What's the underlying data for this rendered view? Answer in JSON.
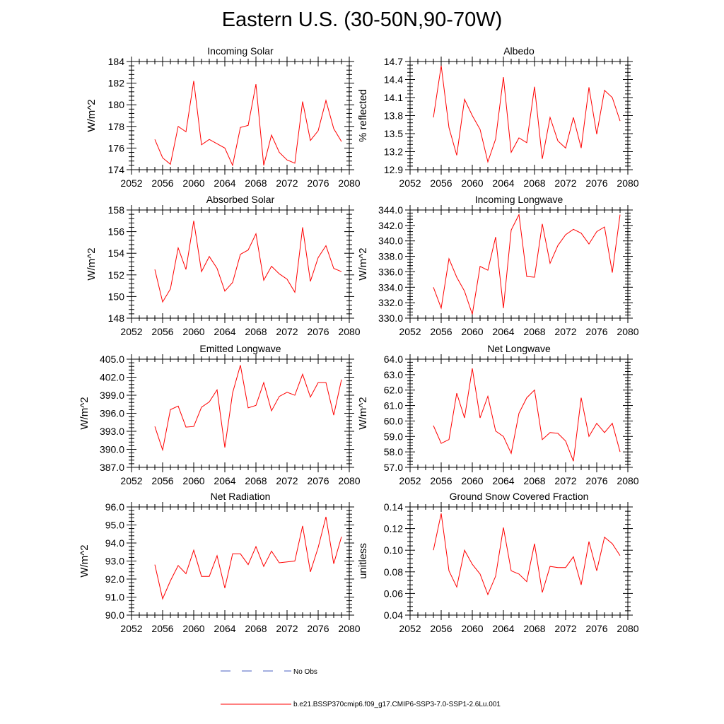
{
  "title": "Eastern U.S. (30-50N,90-70W)",
  "legend": {
    "entries": [
      {
        "label": "No Obs",
        "color": "#4a5fc1",
        "style": "dashed"
      },
      {
        "label": "b.e21.BSSP370cmip6.f09_g17.CMIP6-SSP3-7.0-SSP1-2.6Lu.001",
        "color": "#ff0000",
        "style": "solid"
      }
    ]
  },
  "colors": {
    "series": "#ff0000",
    "axis": "#000000"
  },
  "chart_data": [
    {
      "type": "line",
      "title": "Incoming Solar",
      "ylabel": "W/m^2",
      "xlim": [
        2052,
        2080
      ],
      "ylim": [
        174,
        184
      ],
      "xticks": [
        "2052",
        "2056",
        "2060",
        "2064",
        "2068",
        "2072",
        "2076",
        "2080"
      ],
      "yticks": [
        "174",
        "176",
        "178",
        "180",
        "182",
        "184"
      ],
      "series": [
        {
          "x": [
            2055,
            2056,
            2057,
            2058,
            2059,
            2060,
            2061,
            2062,
            2063,
            2064,
            2065,
            2066,
            2067,
            2068,
            2069,
            2070,
            2071,
            2072,
            2073,
            2074,
            2075,
            2076,
            2077,
            2078,
            2079
          ],
          "values": [
            176.8,
            175.1,
            174.5,
            178.0,
            177.5,
            182.2,
            176.3,
            176.8,
            176.4,
            176.0,
            174.4,
            177.9,
            178.1,
            181.9,
            174.4,
            177.2,
            175.6,
            174.9,
            174.6,
            180.3,
            176.7,
            177.6,
            180.4,
            177.8,
            176.6
          ]
        }
      ]
    },
    {
      "type": "line",
      "title": "Albedo",
      "ylabel": "% reflected",
      "xlim": [
        2052,
        2080
      ],
      "ylim": [
        12.9,
        14.7
      ],
      "xticks": [
        "2052",
        "2056",
        "2060",
        "2064",
        "2068",
        "2072",
        "2076",
        "2080"
      ],
      "yticks": [
        "12.9",
        "13.2",
        "13.5",
        "13.8",
        "14.1",
        "14.4",
        "14.7"
      ],
      "series": [
        {
          "x": [
            2055,
            2056,
            2057,
            2058,
            2059,
            2060,
            2061,
            2062,
            2063,
            2064,
            2065,
            2066,
            2067,
            2068,
            2069,
            2070,
            2071,
            2072,
            2073,
            2074,
            2075,
            2076,
            2077,
            2078,
            2079
          ],
          "values": [
            13.77,
            14.63,
            13.6,
            13.14,
            14.07,
            13.8,
            13.57,
            13.03,
            13.41,
            14.44,
            13.19,
            13.43,
            13.35,
            14.28,
            13.08,
            13.77,
            13.38,
            13.26,
            13.77,
            13.26,
            14.27,
            13.49,
            14.22,
            14.1,
            13.71
          ]
        }
      ]
    },
    {
      "type": "line",
      "title": "Absorbed Solar",
      "ylabel": "W/m^2",
      "xlim": [
        2052,
        2080
      ],
      "ylim": [
        148,
        158
      ],
      "xticks": [
        "2052",
        "2056",
        "2060",
        "2064",
        "2068",
        "2072",
        "2076",
        "2080"
      ],
      "yticks": [
        "148",
        "150",
        "152",
        "154",
        "156",
        "158"
      ],
      "series": [
        {
          "x": [
            2055,
            2056,
            2057,
            2058,
            2059,
            2060,
            2061,
            2062,
            2063,
            2064,
            2065,
            2066,
            2067,
            2068,
            2069,
            2070,
            2071,
            2072,
            2073,
            2074,
            2075,
            2076,
            2077,
            2078,
            2079
          ],
          "values": [
            152.5,
            149.5,
            150.7,
            154.5,
            152.5,
            157.0,
            152.3,
            153.7,
            152.6,
            150.5,
            151.3,
            153.9,
            154.3,
            155.8,
            151.5,
            152.8,
            152.1,
            151.6,
            150.4,
            156.4,
            151.4,
            153.6,
            154.7,
            152.6,
            152.3
          ]
        }
      ]
    },
    {
      "type": "line",
      "title": "Incoming Longwave",
      "ylabel": "W/m^2",
      "xlim": [
        2052,
        2080
      ],
      "ylim": [
        330.0,
        344.0
      ],
      "xticks": [
        "2052",
        "2056",
        "2060",
        "2064",
        "2068",
        "2072",
        "2076",
        "2080"
      ],
      "yticks": [
        "330.0",
        "332.0",
        "334.0",
        "336.0",
        "338.0",
        "340.0",
        "342.0",
        "344.0"
      ],
      "series": [
        {
          "x": [
            2055,
            2056,
            2057,
            2058,
            2059,
            2060,
            2061,
            2062,
            2063,
            2064,
            2065,
            2066,
            2067,
            2068,
            2069,
            2070,
            2071,
            2072,
            2073,
            2074,
            2075,
            2076,
            2077,
            2078,
            2079
          ],
          "values": [
            334.0,
            331.3,
            337.7,
            335.3,
            333.5,
            330.5,
            336.7,
            336.2,
            340.5,
            331.3,
            341.4,
            343.4,
            335.4,
            335.3,
            342.2,
            337.1,
            339.4,
            340.8,
            341.5,
            341.0,
            339.6,
            341.2,
            341.8,
            335.9,
            343.4
          ]
        }
      ]
    },
    {
      "type": "line",
      "title": "Emitted Longwave",
      "ylabel": "W/m^2",
      "xlim": [
        2052,
        2080
      ],
      "ylim": [
        387.0,
        405.0
      ],
      "xticks": [
        "2052",
        "2056",
        "2060",
        "2064",
        "2068",
        "2072",
        "2076",
        "2080"
      ],
      "yticks": [
        "387.0",
        "390.0",
        "393.0",
        "396.0",
        "399.0",
        "402.0",
        "405.0"
      ],
      "series": [
        {
          "x": [
            2055,
            2056,
            2057,
            2058,
            2059,
            2060,
            2061,
            2062,
            2063,
            2064,
            2065,
            2066,
            2067,
            2068,
            2069,
            2070,
            2071,
            2072,
            2073,
            2074,
            2075,
            2076,
            2077,
            2078,
            2079
          ],
          "values": [
            393.8,
            389.9,
            396.6,
            397.2,
            393.7,
            393.8,
            397.0,
            397.9,
            399.9,
            390.3,
            399.4,
            404.0,
            396.9,
            397.3,
            401.1,
            396.4,
            398.8,
            399.5,
            399.0,
            402.5,
            398.7,
            401.1,
            401.1,
            395.7,
            401.6
          ]
        }
      ]
    },
    {
      "type": "line",
      "title": "Net Longwave",
      "ylabel": "W/m^2",
      "xlim": [
        2052,
        2080
      ],
      "ylim": [
        57.0,
        64.0
      ],
      "xticks": [
        "2052",
        "2056",
        "2060",
        "2064",
        "2068",
        "2072",
        "2076",
        "2080"
      ],
      "yticks": [
        "57.0",
        "58.0",
        "59.0",
        "60.0",
        "61.0",
        "62.0",
        "63.0",
        "64.0"
      ],
      "series": [
        {
          "x": [
            2055,
            2056,
            2057,
            2058,
            2059,
            2060,
            2061,
            2062,
            2063,
            2064,
            2065,
            2066,
            2067,
            2068,
            2069,
            2070,
            2071,
            2072,
            2073,
            2074,
            2075,
            2076,
            2077,
            2078,
            2079
          ],
          "values": [
            59.7,
            58.55,
            58.8,
            61.8,
            60.2,
            63.4,
            60.2,
            61.6,
            59.35,
            59.0,
            57.9,
            60.5,
            61.5,
            62.0,
            58.8,
            59.25,
            59.2,
            58.7,
            57.4,
            61.5,
            59.0,
            59.85,
            59.25,
            59.85,
            58.0
          ]
        }
      ]
    },
    {
      "type": "line",
      "title": "Net Radiation",
      "ylabel": "W/m^2",
      "xlim": [
        2052,
        2080
      ],
      "ylim": [
        90.0,
        96.0
      ],
      "xticks": [
        "2052",
        "2056",
        "2060",
        "2064",
        "2068",
        "2072",
        "2076",
        "2080"
      ],
      "yticks": [
        "90.0",
        "91.0",
        "92.0",
        "93.0",
        "94.0",
        "95.0",
        "96.0"
      ],
      "series": [
        {
          "x": [
            2055,
            2056,
            2057,
            2058,
            2059,
            2060,
            2061,
            2062,
            2063,
            2064,
            2065,
            2066,
            2067,
            2068,
            2069,
            2070,
            2071,
            2072,
            2073,
            2074,
            2075,
            2076,
            2077,
            2078,
            2079
          ],
          "values": [
            92.8,
            90.9,
            91.9,
            92.75,
            92.3,
            93.6,
            92.15,
            92.15,
            93.3,
            91.5,
            93.4,
            93.4,
            92.8,
            93.8,
            92.7,
            93.55,
            92.9,
            92.95,
            93.0,
            94.95,
            92.4,
            93.75,
            95.45,
            92.85,
            94.35
          ]
        }
      ]
    },
    {
      "type": "line",
      "title": "Ground Snow Covered Fraction",
      "ylabel": "unitless",
      "xlim": [
        2052,
        2080
      ],
      "ylim": [
        0.04,
        0.14
      ],
      "xticks": [
        "2052",
        "2056",
        "2060",
        "2064",
        "2068",
        "2072",
        "2076",
        "2080"
      ],
      "yticks": [
        "0.04",
        "0.06",
        "0.08",
        "0.10",
        "0.12",
        "0.14"
      ],
      "series": [
        {
          "x": [
            2055,
            2056,
            2057,
            2058,
            2059,
            2060,
            2061,
            2062,
            2063,
            2064,
            2065,
            2066,
            2067,
            2068,
            2069,
            2070,
            2071,
            2072,
            2073,
            2074,
            2075,
            2076,
            2077,
            2078,
            2079
          ],
          "values": [
            0.1,
            0.134,
            0.081,
            0.066,
            0.1,
            0.087,
            0.078,
            0.059,
            0.076,
            0.121,
            0.081,
            0.078,
            0.071,
            0.106,
            0.061,
            0.085,
            0.084,
            0.084,
            0.094,
            0.068,
            0.108,
            0.081,
            0.112,
            0.106,
            0.095
          ]
        }
      ]
    }
  ]
}
